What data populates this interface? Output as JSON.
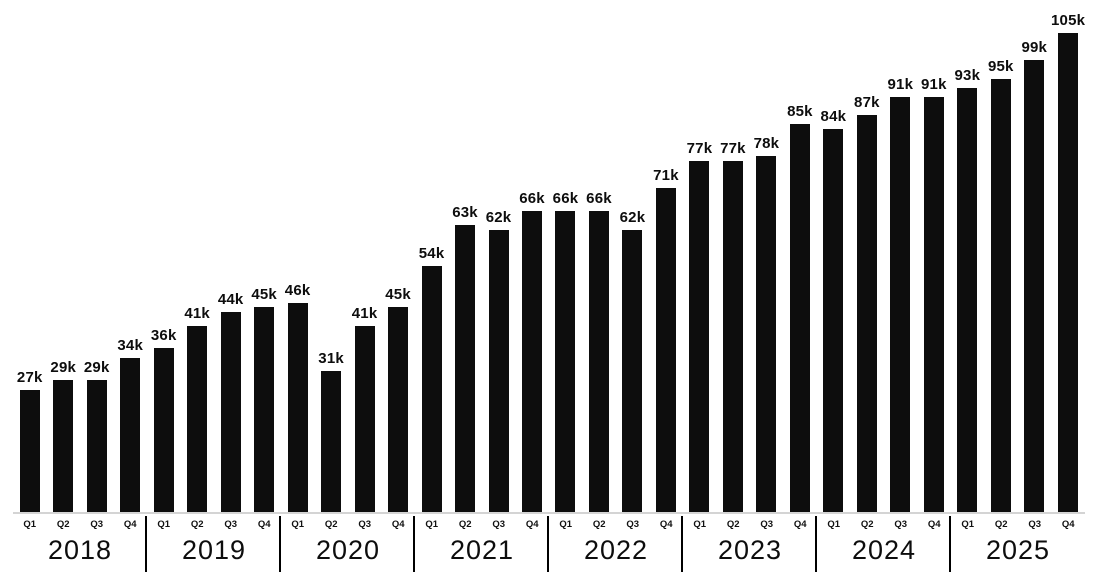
{
  "chart_data": {
    "type": "bar",
    "title": "",
    "unit": "k",
    "grid": false,
    "legend": false,
    "ylim": [
      0,
      112
    ],
    "bar_color": "#0d0d0d",
    "axis_line_color": "#d4d4d4",
    "divider_color": "#000000",
    "quarter_labels": [
      "Q1",
      "Q2",
      "Q3",
      "Q4"
    ],
    "groups": [
      {
        "year": "2018",
        "values": [
          27,
          29,
          29,
          34
        ],
        "labels": [
          "27k",
          "29k",
          "29k",
          "34k"
        ]
      },
      {
        "year": "2019",
        "values": [
          36,
          41,
          44,
          45
        ],
        "labels": [
          "36k",
          "41k",
          "44k",
          "45k"
        ]
      },
      {
        "year": "2020",
        "values": [
          46,
          31,
          41,
          45
        ],
        "labels": [
          "46k",
          "31k",
          "41k",
          "45k"
        ]
      },
      {
        "year": "2021",
        "values": [
          54,
          63,
          62,
          66
        ],
        "labels": [
          "54k",
          "63k",
          "62k",
          "66k"
        ]
      },
      {
        "year": "2022",
        "values": [
          66,
          66,
          62,
          71
        ],
        "labels": [
          "66k",
          "66k",
          "62k",
          "71k"
        ]
      },
      {
        "year": "2023",
        "values": [
          77,
          77,
          78,
          85
        ],
        "labels": [
          "77k",
          "77k",
          "78k",
          "85k"
        ]
      },
      {
        "year": "2024",
        "values": [
          84,
          87,
          91,
          91
        ],
        "labels": [
          "84k",
          "87k",
          "91k",
          "91k"
        ]
      },
      {
        "year": "2025",
        "values": [
          93,
          95,
          99,
          105
        ],
        "labels": [
          "93k",
          "95k",
          "99k",
          "105k"
        ]
      }
    ]
  }
}
